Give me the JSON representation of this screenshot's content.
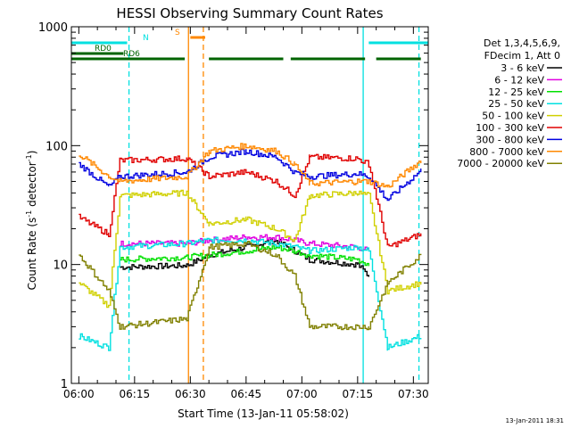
{
  "chart_data": {
    "type": "line",
    "title": "HESSI Observing Summary Count Rates",
    "xlabel": "Start Time (13-Jan-11 05:58:02)",
    "ylabel": "Count Rate (s",
    "ylabel_sup": "-1",
    "ylabel_rest": " detector",
    "ylabel_sup2": "-1",
    "ylabel_end": ")",
    "y_scale": "log",
    "ylim": [
      1,
      1000
    ],
    "xlim_minutes": [
      0,
      96
    ],
    "x_ticks": [
      {
        "label": "06:00",
        "t": 2
      },
      {
        "label": "06:15",
        "t": 17
      },
      {
        "label": "06:30",
        "t": 32
      },
      {
        "label": "06:45",
        "t": 47
      },
      {
        "label": "07:00",
        "t": 62
      },
      {
        "label": "07:15",
        "t": 77
      },
      {
        "label": "07:30",
        "t": 92
      }
    ],
    "y_ticks": [
      {
        "label": "1",
        "v": 1
      },
      {
        "label": "10",
        "v": 10
      },
      {
        "label": "100",
        "v": 100
      },
      {
        "label": "1000",
        "v": 1000
      }
    ],
    "legend": {
      "placement": "right",
      "header": [
        "Det 1,3,4,5,6,9,",
        "FDecim 1, Att 0"
      ]
    },
    "series": [
      {
        "name": "3 - 6 keV",
        "color": "#000000",
        "values": [
          null,
          null,
          9.5,
          9.8,
          12,
          14,
          16,
          13,
          11,
          10,
          8,
          null,
          null
        ]
      },
      {
        "name": "6 - 12 keV",
        "color": "#e000e0",
        "values": [
          null,
          null,
          15,
          15,
          16,
          17,
          17,
          16,
          15,
          14,
          13,
          null,
          null
        ]
      },
      {
        "name": "12 - 25 keV",
        "color": "#00e000",
        "values": [
          null,
          null,
          11,
          11.5,
          12,
          13,
          14,
          13,
          12,
          11,
          10,
          null,
          null
        ]
      },
      {
        "name": "25 - 50 keV",
        "color": "#00e0e0",
        "values": [
          2.5,
          2,
          14,
          15,
          16,
          16,
          15,
          14,
          13,
          14,
          13,
          2,
          2.5
        ]
      },
      {
        "name": "50 - 100 keV",
        "color": "#d0d000",
        "values": [
          7,
          4.5,
          38,
          40,
          22,
          24,
          20,
          16,
          38,
          40,
          38,
          6,
          7
        ]
      },
      {
        "name": "100 - 300 keV",
        "color": "#e00000",
        "values": [
          25,
          18,
          75,
          78,
          55,
          60,
          50,
          38,
          80,
          78,
          70,
          14,
          18
        ]
      },
      {
        "name": "300 - 800 keV",
        "color": "#0000e0",
        "values": [
          70,
          45,
          55,
          60,
          80,
          90,
          80,
          60,
          55,
          58,
          55,
          35,
          62
        ]
      },
      {
        "name": "800 - 7000 keV",
        "color": "#ff8800",
        "values": [
          85,
          55,
          50,
          55,
          90,
          100,
          90,
          70,
          48,
          50,
          50,
          45,
          75
        ]
      },
      {
        "name": "7000 - 20000 keV",
        "color": "#808000",
        "values": [
          12,
          6,
          3,
          3.5,
          14,
          15,
          12,
          8,
          3,
          3,
          3,
          7,
          12
        ]
      }
    ],
    "sample_times_minutes": [
      2,
      10,
      13,
      31,
      37,
      47,
      55,
      60,
      64,
      77,
      80,
      85,
      94
    ],
    "state_bars": [
      {
        "label": "N",
        "color": "#00e0e0",
        "segments": [
          [
            0,
            15
          ],
          [
            80,
            96
          ]
        ]
      },
      {
        "label": "RD0",
        "color": "#006400",
        "segments": [
          [
            0,
            14
          ]
        ]
      },
      {
        "label": "RD6",
        "color": "#006400",
        "segments": [
          [
            0,
            30.5
          ],
          [
            37,
            57
          ],
          [
            59,
            79
          ],
          [
            82,
            94
          ]
        ]
      },
      {
        "label": "S",
        "color": "#ff8800",
        "segments": [
          [
            32,
            36
          ]
        ]
      }
    ],
    "vlines": [
      {
        "t": 31.5,
        "color": "#ff8800",
        "style": "solid"
      },
      {
        "t": 35.5,
        "color": "#ff8800",
        "style": "dashed"
      },
      {
        "t": 15.5,
        "color": "#00e0e0",
        "style": "dashed"
      },
      {
        "t": 78.5,
        "color": "#00e0e0",
        "style": "solid"
      },
      {
        "t": 93.5,
        "color": "#00e0e0",
        "style": "dashed"
      }
    ]
  },
  "footer": {
    "date_stamp": "13-Jan-2011 18:31"
  }
}
